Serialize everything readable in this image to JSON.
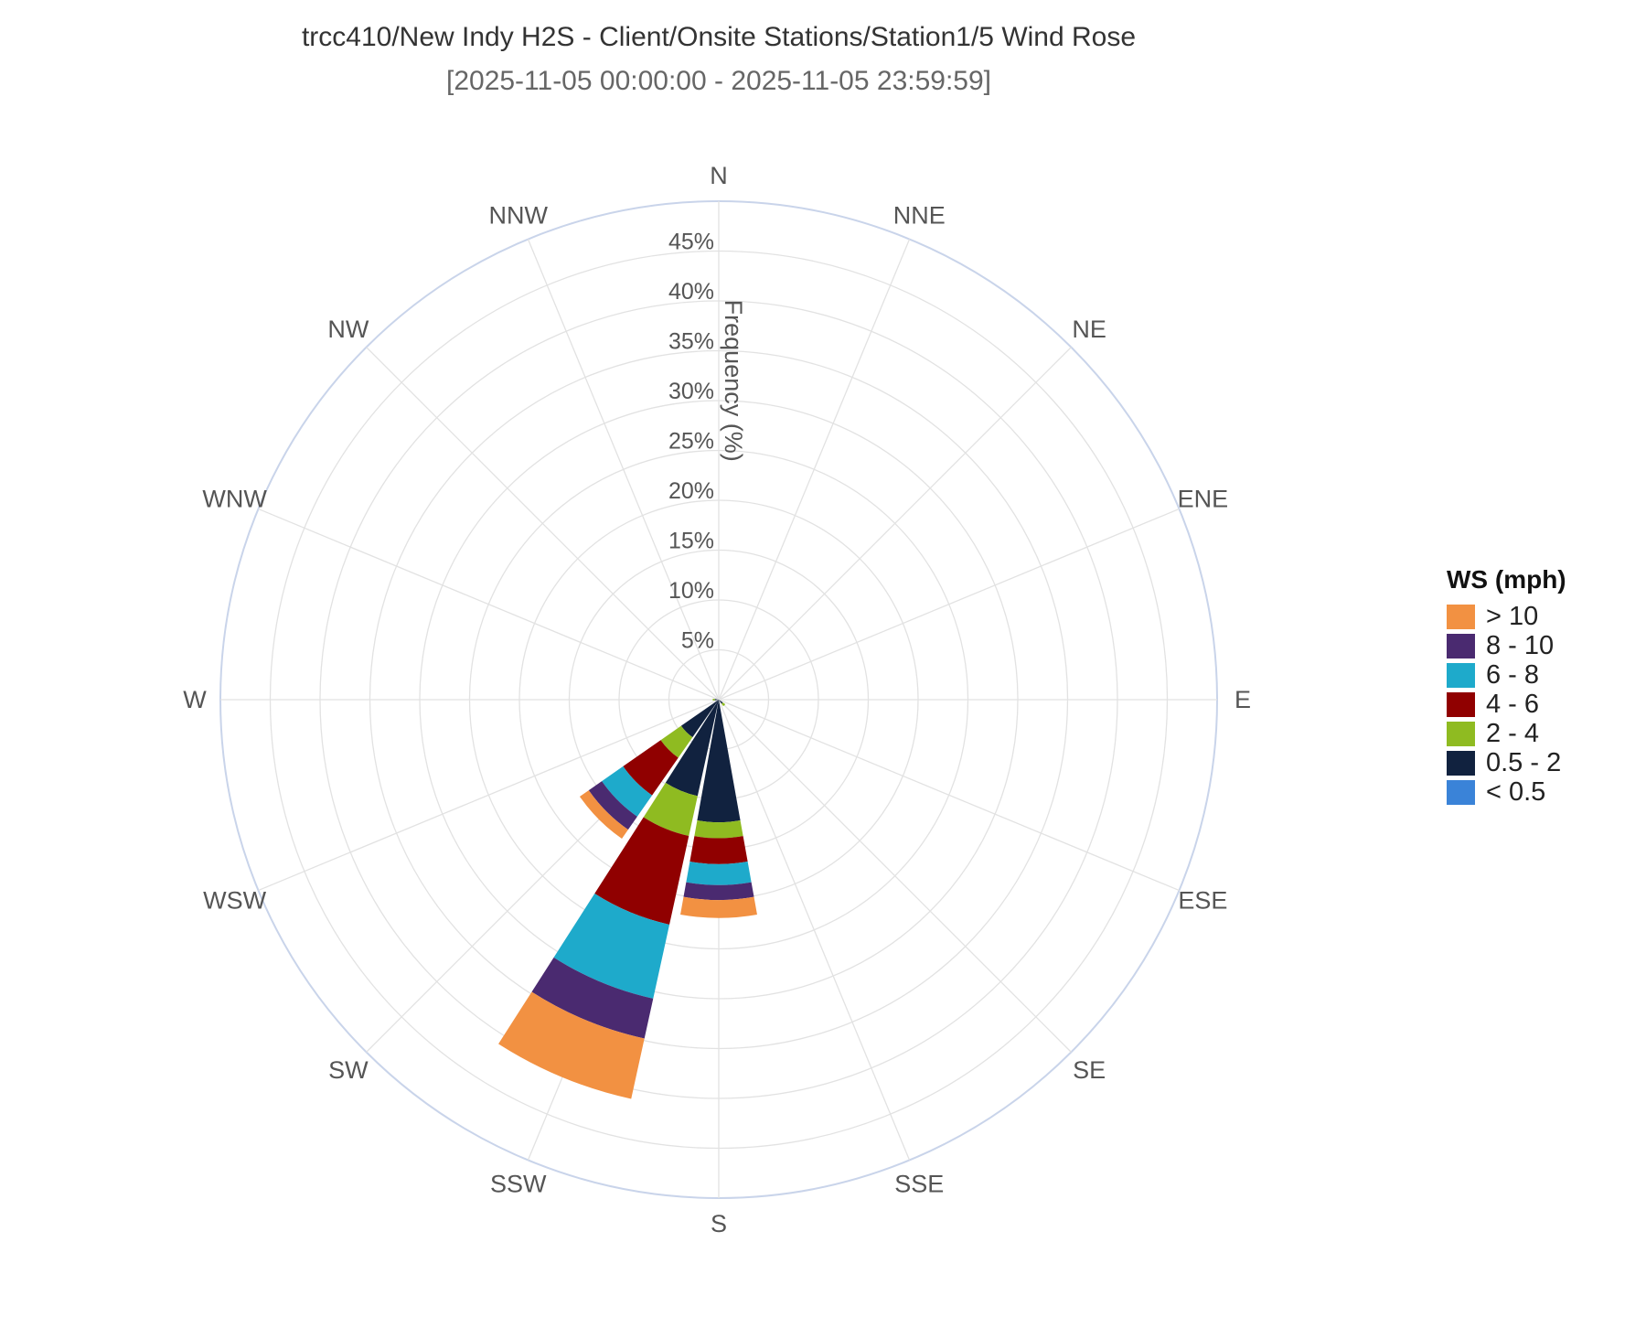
{
  "chart_data": {
    "type": "wind-rose",
    "title": "trcc410/New Indy H2S - Client/Onsite Stations/Station1/5 Wind Rose",
    "subtitle": "[2025-11-05 00:00:00 - 2025-11-05 23:59:59]",
    "radial_axis_label": "Frequency (%)",
    "radial_range": [
      0,
      50
    ],
    "radial_ticks": [
      "5%",
      "10%",
      "15%",
      "20%",
      "25%",
      "30%",
      "35%",
      "40%",
      "45%"
    ],
    "radial_tick_values": [
      5,
      10,
      15,
      20,
      25,
      30,
      35,
      40,
      45
    ],
    "directions": [
      "N",
      "NNE",
      "NE",
      "ENE",
      "E",
      "ESE",
      "SE",
      "SSE",
      "S",
      "SSW",
      "SW",
      "WSW",
      "W",
      "WNW",
      "NW",
      "NNW"
    ],
    "legend_title": "WS (mph)",
    "legend_placement": "right",
    "grid": true,
    "series": [
      {
        "name": "< 0.5",
        "color": "#3a83d8",
        "values": [
          0,
          0,
          0,
          0,
          0,
          0,
          0,
          0,
          0,
          0,
          0,
          0,
          0,
          0,
          0,
          0
        ]
      },
      {
        "name": "0.5 - 2",
        "color": "#11223f",
        "values": [
          0,
          0,
          0,
          0,
          0,
          0,
          0.5,
          0,
          12.3,
          9.9,
          4.6,
          0,
          0.4,
          0,
          0,
          0
        ]
      },
      {
        "name": "2 - 4",
        "color": "#8fbb21",
        "values": [
          0,
          0,
          0,
          0,
          0,
          0,
          0.3,
          0,
          1.6,
          4.1,
          2.5,
          0,
          0.2,
          0,
          0,
          0
        ]
      },
      {
        "name": "4 - 6",
        "color": "#900000",
        "values": [
          0,
          0,
          0,
          0,
          0,
          0,
          0,
          0,
          2.6,
          9.1,
          4.6,
          0,
          0,
          0,
          0,
          0
        ]
      },
      {
        "name": "6 - 8",
        "color": "#1eaacb",
        "values": [
          0,
          0,
          0,
          0,
          0,
          0,
          0,
          0,
          2.1,
          7.6,
          2.6,
          0,
          0,
          0,
          0,
          0
        ]
      },
      {
        "name": "8 - 10",
        "color": "#4a2a70",
        "values": [
          0,
          0,
          0,
          0,
          0,
          0,
          0,
          0,
          1.5,
          4.1,
          1.6,
          0,
          0,
          0,
          0,
          0
        ]
      },
      {
        "name": "> 10",
        "color": "#f29142",
        "values": [
          0,
          0,
          0,
          0,
          0,
          0,
          0,
          0,
          1.8,
          6.2,
          1.1,
          0,
          0,
          0,
          0,
          0
        ]
      }
    ]
  }
}
